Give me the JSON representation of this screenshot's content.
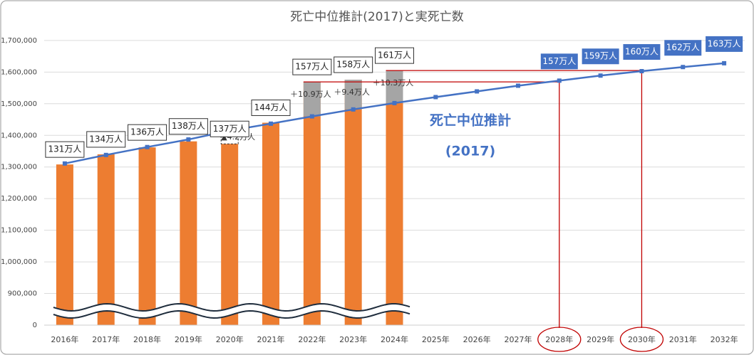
{
  "chart_data": {
    "type": "bar_line",
    "title": "死亡中位推計(2017)と実死亡数",
    "categories": [
      "2016年",
      "2017年",
      "2018年",
      "2019年",
      "2020年",
      "2021年",
      "2022年",
      "2023年",
      "2024年",
      "2025年",
      "2026年",
      "2027年",
      "2028年",
      "2029年",
      "2030年",
      "2031年",
      "2032年"
    ],
    "series": [
      {
        "kind": "bar",
        "color": "#ed7d31",
        "values": [
          1308000,
          1340000,
          1362000,
          1381000,
          1373000,
          1440000,
          1569000,
          1576000,
          1605000,
          null,
          null,
          null,
          null,
          null,
          null,
          null,
          null
        ],
        "value_labels": [
          "131万人",
          "134万人",
          "136万人",
          "138万人",
          "137万人",
          "144万人",
          "157万人",
          "158万人",
          "161万人",
          null,
          null,
          null,
          null,
          null,
          null,
          null,
          null
        ]
      },
      {
        "kind": "line",
        "color": "#4472c4",
        "values": [
          1311000,
          1338000,
          1363000,
          1387000,
          1415000,
          1437000,
          1460000,
          1482000,
          1502000,
          1521000,
          1539000,
          1557000,
          1573000,
          1589000,
          1603000,
          1616000,
          1628000
        ],
        "value_labels": [
          null,
          null,
          null,
          null,
          null,
          null,
          null,
          null,
          null,
          null,
          null,
          null,
          "157万人",
          "159万人",
          "160万人",
          "162万人",
          "163万人"
        ]
      },
      {
        "kind": "excess",
        "color": "#a5a5a5",
        "values": [
          null,
          null,
          null,
          null,
          null,
          null,
          109000,
          94000,
          103000,
          null,
          null,
          null,
          null,
          null,
          null,
          null,
          null
        ],
        "value_labels": [
          null,
          null,
          null,
          null,
          null,
          null,
          "＋10.9万人",
          "＋9.4万人",
          "＋10.3万人",
          null,
          null,
          null,
          null,
          null,
          null,
          null,
          null
        ]
      },
      {
        "kind": "shortfall",
        "color": "#333333",
        "values": [
          null,
          null,
          null,
          null,
          42000,
          null,
          null,
          null,
          null,
          null,
          null,
          null,
          null,
          null,
          null,
          null,
          null
        ],
        "value_labels": [
          null,
          null,
          null,
          null,
          "▲4.2万人",
          null,
          null,
          null,
          null,
          null,
          null,
          null,
          null,
          null,
          null,
          null,
          null
        ]
      }
    ],
    "ylim": [
      0,
      1720000
    ],
    "y_break": [
      0,
      800000
    ],
    "yticks": [
      0,
      {
        "value": 900000,
        "label": "900,000"
      },
      {
        "value": 1000000,
        "label": "1,000,000"
      },
      {
        "value": 1100000,
        "label": "1,100,000"
      },
      {
        "value": 1200000,
        "label": "1,200,000"
      },
      {
        "value": 1300000,
        "label": "1,300,000"
      },
      {
        "value": 1400000,
        "label": "1,400,000"
      },
      {
        "value": 1500000,
        "label": "1,500,000"
      },
      {
        "value": 1600000,
        "label": "1,600,000"
      },
      {
        "value": 1700000,
        "label": "1,700,000"
      }
    ],
    "grid": true,
    "annotation": [
      "死亡中位推計",
      "(2017)"
    ]
  }
}
